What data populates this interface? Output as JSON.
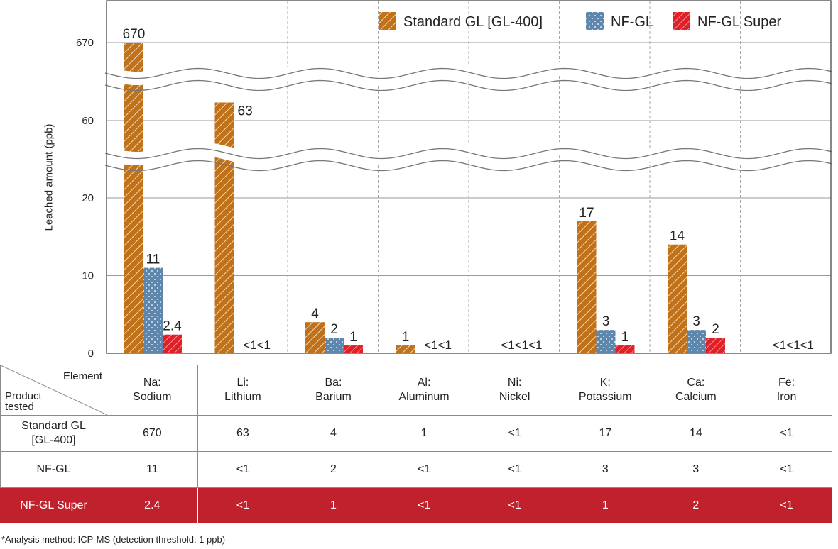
{
  "chart_data": {
    "type": "bar",
    "ylabel": "Leached amount (ppb)",
    "axis_break": true,
    "y_ticks": [
      "0",
      "10",
      "20",
      "60",
      "670"
    ],
    "grid": true,
    "legend_position": "top-right",
    "categories": [
      "Na: Sodium",
      "Li: Lithium",
      "Ba: Barium",
      "Al: Aluminum",
      "Ni: Nickel",
      "K: Potassium",
      "Ca: Calcium",
      "Fe: Iron"
    ],
    "series": [
      {
        "name": "Standard GL [GL-400]",
        "color": "#c0721b",
        "pattern": "diagonal-hatch",
        "values": [
          670,
          63,
          4,
          1,
          null,
          17,
          14,
          null
        ],
        "labels": [
          "670",
          "63",
          "4",
          "1",
          "",
          "17",
          "14",
          ""
        ]
      },
      {
        "name": "NF-GL",
        "color": "#5e87ad",
        "pattern": "dots",
        "values": [
          11,
          null,
          2,
          null,
          null,
          3,
          3,
          null
        ],
        "labels": [
          "11",
          "",
          "2",
          "",
          "",
          "3",
          "3",
          ""
        ]
      },
      {
        "name": "NF-GL Super",
        "color": "#e01f26",
        "pattern": "diagonal-hatch",
        "values": [
          2.4,
          null,
          1,
          null,
          null,
          1,
          2,
          null
        ],
        "labels": [
          "2.4",
          "",
          "1",
          "",
          "",
          "1",
          "2",
          ""
        ]
      }
    ],
    "below_threshold_labels": [
      "",
      "<1<1",
      "",
      "<1<1",
      "<1<1<1",
      "",
      "",
      "<1<1<1"
    ]
  },
  "table": {
    "corner_element": "Element",
    "corner_product": "Product tested",
    "columns": [
      {
        "symbol": "Na:",
        "name": "Sodium"
      },
      {
        "symbol": "Li:",
        "name": "Lithium"
      },
      {
        "symbol": "Ba:",
        "name": "Barium"
      },
      {
        "symbol": "Al:",
        "name": "Aluminum"
      },
      {
        "symbol": "Ni:",
        "name": "Nickel"
      },
      {
        "symbol": "K:",
        "name": "Potassium"
      },
      {
        "symbol": "Ca:",
        "name": "Calcium"
      },
      {
        "symbol": "Fe:",
        "name": "Iron"
      }
    ],
    "rows": [
      {
        "product": "Standard GL [GL-400]",
        "values": [
          "670",
          "63",
          "4",
          "1",
          "<1",
          "17",
          "14",
          "<1"
        ]
      },
      {
        "product": "NF-GL",
        "values": [
          "11",
          "<1",
          "2",
          "<1",
          "<1",
          "3",
          "3",
          "<1"
        ]
      },
      {
        "product": "NF-GL Super",
        "values": [
          "2.4",
          "<1",
          "1",
          "<1",
          "<1",
          "1",
          "2",
          "<1"
        ]
      }
    ],
    "highlight_color": "#c0212c"
  },
  "footnote": "*Analysis method: ICP-MS (detection threshold: 1 ppb)"
}
